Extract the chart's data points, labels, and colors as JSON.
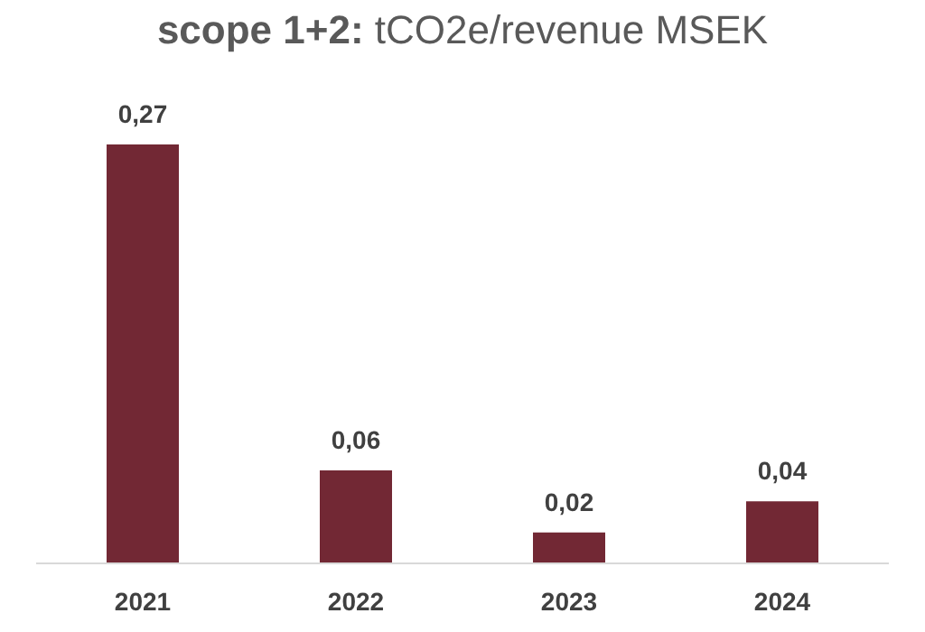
{
  "chart_data": {
    "type": "bar",
    "title": "scope 1+2: tCO2e/revenue MSEK",
    "categories": [
      "2021",
      "2022",
      "2023",
      "2024"
    ],
    "values": [
      0.27,
      0.06,
      0.02,
      0.04
    ],
    "value_labels": [
      "0,27",
      "0,06",
      "0,02",
      "0,04"
    ],
    "color": "#722834",
    "grid": false,
    "legend": false
  }
}
